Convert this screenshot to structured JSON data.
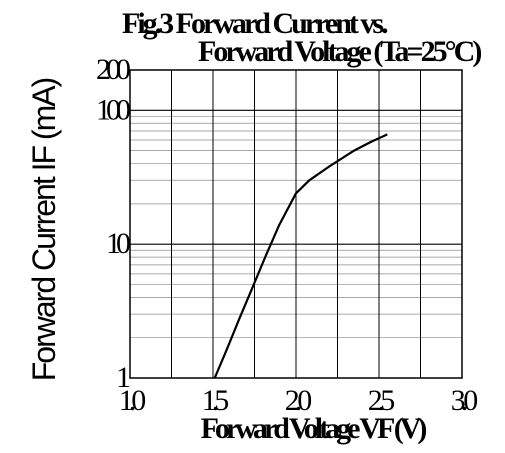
{
  "chart_data": {
    "type": "line",
    "title_lines": [
      "Fig.3 Forward Current vs.",
      "Forward Voltage (Ta=25°C)"
    ],
    "xlabel": "Forward Voltage VF (V)",
    "ylabel": "Forward Current  IF (mA)",
    "xscale": "linear",
    "yscale": "log",
    "xlim": [
      1.0,
      3.0
    ],
    "ylim": [
      1,
      200
    ],
    "x_ticks": [
      1.0,
      1.5,
      2.0,
      2.5,
      3.0
    ],
    "x_tick_labels": [
      "1.0",
      "1.5",
      "2.0",
      "2.5",
      "3.0"
    ],
    "y_ticks": [
      1,
      10,
      100,
      200
    ],
    "y_tick_labels": [
      "1",
      "10",
      "100",
      "200"
    ],
    "grid": true,
    "series": [
      {
        "x": [
          1.51,
          1.58,
          1.66,
          1.74,
          1.82,
          1.9,
          2.0,
          2.08,
          2.2,
          2.35,
          2.45,
          2.55
        ],
        "y": [
          1.0,
          1.6,
          2.8,
          4.8,
          8.3,
          14.0,
          24.0,
          30.0,
          38.0,
          50.0,
          58.0,
          66.0
        ]
      }
    ]
  }
}
